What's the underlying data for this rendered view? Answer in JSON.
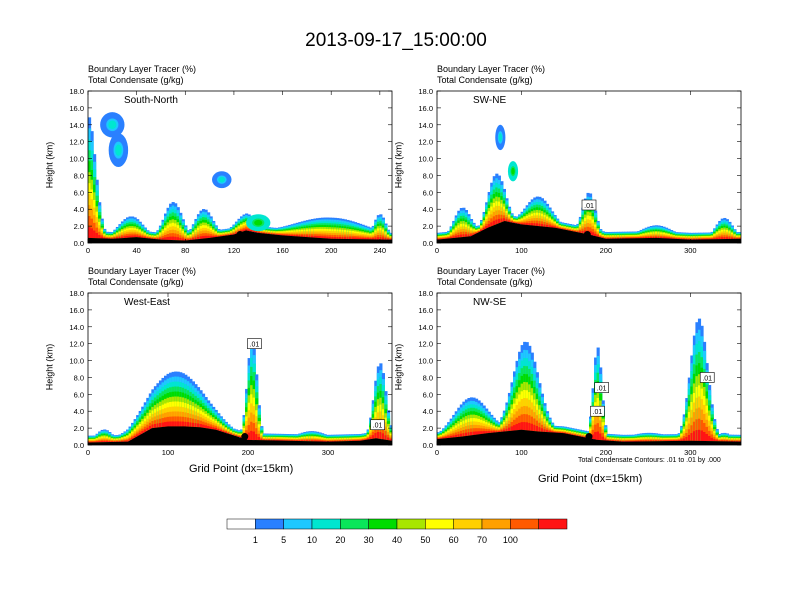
{
  "title": "2013-09-17_15:00:00",
  "header_line1": "Boundary Layer Tracer   (%)",
  "header_line2": "Total Condensate   (g/kg)",
  "ylabel": "Height (km)",
  "xlabel": "Grid Point (dx=15km)",
  "contour_note": "Total Condensate Contours: .01 to .01 by .000",
  "colors": {
    "levels": [
      "#ffffff",
      "#2a80ff",
      "#1ec8ff",
      "#00e6d0",
      "#0ae65a",
      "#00dc00",
      "#a8e600",
      "#ffff00",
      "#ffd000",
      "#ffa000",
      "#ff5a00",
      "#ff1414"
    ],
    "terrain": "#000000"
  },
  "colorbar": {
    "colors": [
      "#ffffff",
      "#2a80ff",
      "#1ec8ff",
      "#00e6d0",
      "#0ae65a",
      "#00dc00",
      "#a8e600",
      "#ffff00",
      "#ffd000",
      "#ffa000",
      "#ff5a00",
      "#ff1414"
    ],
    "labels": [
      "1",
      "5",
      "10",
      "20",
      "30",
      "40",
      "50",
      "60",
      "70",
      "100"
    ]
  },
  "chart_data": [
    {
      "type": "heatmap",
      "name": "South-North",
      "xlim": [
        0,
        250
      ],
      "xticks": [
        0,
        40,
        80,
        120,
        160,
        200,
        240
      ],
      "ylim": [
        0,
        18
      ],
      "yticks": [
        "0.0",
        "2.0",
        "4.0",
        "6.0",
        "8.0",
        "10.0",
        "12.0",
        "14.0",
        "16.0",
        "18.0"
      ],
      "terrain": [
        [
          0,
          0.6
        ],
        [
          20,
          0.5
        ],
        [
          40,
          0.7
        ],
        [
          60,
          0.4
        ],
        [
          80,
          0.3
        ],
        [
          100,
          0.6
        ],
        [
          120,
          1.0
        ],
        [
          130,
          1.5
        ],
        [
          140,
          1.2
        ],
        [
          160,
          0.9
        ],
        [
          200,
          0.5
        ],
        [
          250,
          0.4
        ]
      ],
      "plumes": [
        [
          0,
          12,
          14.5,
          14
        ],
        [
          35,
          20,
          2.5,
          20
        ],
        [
          70,
          15,
          4.5,
          25
        ],
        [
          95,
          15,
          3.5,
          40
        ],
        [
          130,
          20,
          2.0,
          30
        ],
        [
          200,
          60,
          2.5,
          25
        ],
        [
          240,
          10,
          3.0,
          20
        ]
      ],
      "blobs": [
        [
          20,
          14,
          10,
          1.5,
          10
        ],
        [
          25,
          11,
          8,
          2,
          8
        ],
        [
          110,
          7.5,
          8,
          1.0,
          20
        ],
        [
          140,
          2.4,
          10,
          1,
          30
        ]
      ],
      "marker": [
        125,
        1.0
      ],
      "contour_labels": []
    },
    {
      "type": "heatmap",
      "name": "SW-NE",
      "xlim": [
        0,
        360
      ],
      "xticks": [
        0,
        100,
        200,
        300
      ],
      "ylim": [
        0,
        18
      ],
      "yticks": [
        "0.0",
        "2.0",
        "4.0",
        "6.0",
        "8.0",
        "10.0",
        "12.0",
        "14.0",
        "16.0",
        "18.0"
      ],
      "terrain": [
        [
          0,
          0.4
        ],
        [
          40,
          0.8
        ],
        [
          60,
          1.8
        ],
        [
          80,
          2.6
        ],
        [
          100,
          2.2
        ],
        [
          140,
          1.8
        ],
        [
          160,
          1.4
        ],
        [
          180,
          1.0
        ],
        [
          200,
          0.5
        ],
        [
          260,
          0.6
        ],
        [
          300,
          0.4
        ],
        [
          360,
          0.5
        ]
      ],
      "plumes": [
        [
          30,
          20,
          3.5,
          30
        ],
        [
          70,
          20,
          6.0,
          40
        ],
        [
          120,
          30,
          3.5,
          40
        ],
        [
          180,
          15,
          5.0,
          20
        ],
        [
          260,
          40,
          1.5,
          25
        ],
        [
          340,
          20,
          2.5,
          20
        ]
      ],
      "blobs": [
        [
          75,
          12.5,
          6,
          1.5,
          10
        ],
        [
          90,
          8.5,
          6,
          1.2,
          40
        ]
      ],
      "marker": [
        178,
        1.0
      ],
      "contour_labels": [
        [
          180,
          4.5,
          ".01"
        ]
      ]
    },
    {
      "type": "heatmap",
      "name": "West-East",
      "xlim": [
        0,
        380
      ],
      "xticks": [
        0,
        100,
        200,
        300
      ],
      "ylim": [
        0,
        18
      ],
      "yticks": [
        "0.0",
        "2.0",
        "4.0",
        "6.0",
        "8.0",
        "10.0",
        "12.0",
        "14.0",
        "16.0",
        "18.0"
      ],
      "terrain": [
        [
          0,
          0.3
        ],
        [
          50,
          0.4
        ],
        [
          65,
          1.2
        ],
        [
          80,
          2.0
        ],
        [
          100,
          2.2
        ],
        [
          120,
          2.2
        ],
        [
          140,
          2.1
        ],
        [
          160,
          1.8
        ],
        [
          180,
          1.2
        ],
        [
          200,
          0.6
        ],
        [
          300,
          0.4
        ],
        [
          340,
          0.5
        ],
        [
          360,
          0.8
        ],
        [
          380,
          0.5
        ]
      ],
      "plumes": [
        [
          110,
          70,
          6.5,
          50
        ],
        [
          205,
          12,
          12.0,
          20
        ],
        [
          365,
          15,
          9.0,
          20
        ],
        [
          20,
          20,
          1.5,
          10
        ],
        [
          280,
          40,
          1.2,
          10
        ]
      ],
      "blobs": [],
      "marker": [
        196,
        1.0
      ],
      "contour_labels": [
        [
          208,
          12.0,
          ".01"
        ],
        [
          362,
          2.4,
          ".01"
        ]
      ]
    },
    {
      "type": "heatmap",
      "name": "NW-SE",
      "xlim": [
        0,
        360
      ],
      "xticks": [
        0,
        100,
        200,
        300
      ],
      "ylim": [
        0,
        18
      ],
      "yticks": [
        "0.0",
        "2.0",
        "4.0",
        "6.0",
        "8.0",
        "10.0",
        "12.0",
        "14.0",
        "16.0",
        "18.0"
      ],
      "terrain": [
        [
          0,
          0.7
        ],
        [
          30,
          1.0
        ],
        [
          60,
          1.4
        ],
        [
          100,
          1.8
        ],
        [
          120,
          1.6
        ],
        [
          150,
          1.4
        ],
        [
          170,
          1.0
        ],
        [
          190,
          0.6
        ],
        [
          220,
          0.4
        ],
        [
          300,
          0.5
        ],
        [
          360,
          0.4
        ]
      ],
      "plumes": [
        [
          40,
          40,
          4.5,
          30
        ],
        [
          105,
          30,
          10.5,
          60
        ],
        [
          190,
          10,
          11.0,
          20
        ],
        [
          310,
          20,
          14.5,
          60
        ],
        [
          250,
          50,
          1.0,
          10
        ],
        [
          340,
          20,
          1.0,
          10
        ]
      ],
      "blobs": [],
      "marker": [
        180,
        1.0
      ],
      "contour_labels": [
        [
          195,
          6.8,
          ".01"
        ],
        [
          190,
          4.0,
          ".01"
        ],
        [
          320,
          8.0,
          ".01"
        ]
      ]
    }
  ]
}
